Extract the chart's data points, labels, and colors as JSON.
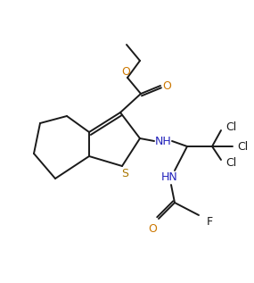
{
  "bg_color": "#ffffff",
  "line_color": "#1a1a1a",
  "line_width": 1.4,
  "atom_colors": {
    "O": "#cc7700",
    "N": "#2222bb",
    "S": "#aa7700",
    "Cl": "#1a1a1a",
    "F": "#1a1a1a",
    "C": "#1a1a1a"
  },
  "figsize": [
    2.85,
    3.17
  ],
  "dpi": 100
}
